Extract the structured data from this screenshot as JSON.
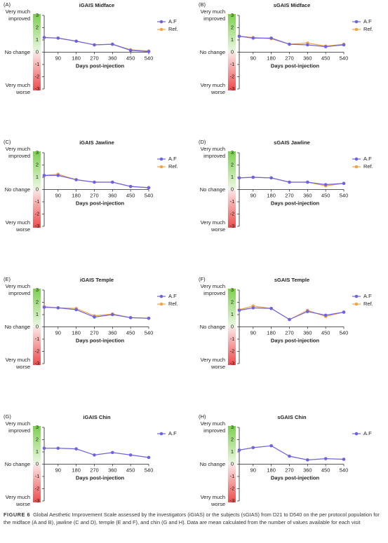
{
  "chart_data": [
    {
      "type": "line",
      "panel": "(A)",
      "title": "iGAIS Midface",
      "xlabel": "Days post-injection",
      "x": [
        21,
        90,
        180,
        270,
        360,
        450,
        540
      ],
      "xlim": [
        21,
        540
      ],
      "xticks": [
        90,
        180,
        270,
        360,
        450,
        540
      ],
      "ylim": [
        -3,
        3
      ],
      "yticks": [
        3,
        2,
        1,
        0,
        -1,
        -2,
        -3
      ],
      "y_annotations": [
        {
          "value": 3,
          "label": "Very much improved"
        },
        {
          "value": 0,
          "label": "No change"
        },
        {
          "value": -3,
          "label": "Very much worse"
        }
      ],
      "series": [
        {
          "name": "A.F",
          "color": "#6b63e6",
          "values": [
            1.2,
            1.15,
            0.9,
            0.6,
            0.65,
            0.15,
            0.05
          ]
        },
        {
          "name": "Ref.",
          "color": "#f4a447",
          "values": [
            1.2,
            1.15,
            0.9,
            0.6,
            0.65,
            0.2,
            0.1
          ]
        }
      ]
    },
    {
      "type": "line",
      "panel": "(B)",
      "title": "sGAIS Midface",
      "xlabel": "Days post-injection",
      "x": [
        21,
        90,
        180,
        270,
        360,
        450,
        540
      ],
      "xlim": [
        21,
        540
      ],
      "xticks": [
        90,
        180,
        270,
        360,
        450,
        540
      ],
      "ylim": [
        -3,
        3
      ],
      "yticks": [
        3,
        2,
        1,
        0,
        -1,
        -2,
        -3
      ],
      "y_annotations": [
        {
          "value": 3,
          "label": "Very much improved"
        },
        {
          "value": 0,
          "label": "No change"
        },
        {
          "value": -3,
          "label": "Very much worse"
        }
      ],
      "series": [
        {
          "name": "A.F",
          "color": "#6b63e6",
          "values": [
            1.3,
            1.15,
            1.15,
            0.65,
            0.6,
            0.45,
            0.6
          ]
        },
        {
          "name": "Ref.",
          "color": "#f4a447",
          "values": [
            1.3,
            1.2,
            1.1,
            0.65,
            0.75,
            0.5,
            0.65
          ]
        }
      ]
    },
    {
      "type": "line",
      "panel": "(C)",
      "title": "iGAIS Jawline",
      "xlabel": "Days post-injection",
      "x": [
        21,
        90,
        180,
        270,
        360,
        450,
        540
      ],
      "xlim": [
        21,
        540
      ],
      "xticks": [
        90,
        180,
        270,
        360,
        450,
        540
      ],
      "ylim": [
        -3,
        3
      ],
      "yticks": [
        3,
        2,
        1,
        0,
        -1,
        -2,
        -3
      ],
      "y_annotations": [
        {
          "value": 3,
          "label": "Very much improved"
        },
        {
          "value": 0,
          "label": "No change"
        },
        {
          "value": -3,
          "label": "Very much worse"
        }
      ],
      "series": [
        {
          "name": "A.F",
          "color": "#6b63e6",
          "values": [
            1.15,
            1.15,
            0.8,
            0.6,
            0.6,
            0.25,
            0.15
          ]
        },
        {
          "name": "Ref.",
          "color": "#f4a447",
          "values": [
            1.15,
            1.25,
            0.8,
            0.6,
            0.6,
            0.25,
            0.15
          ]
        }
      ]
    },
    {
      "type": "line",
      "panel": "(D)",
      "title": "sGAIS Jawline",
      "xlabel": "Days post-injection",
      "x": [
        21,
        90,
        180,
        270,
        360,
        450,
        540
      ],
      "xlim": [
        21,
        540
      ],
      "xticks": [
        90,
        180,
        270,
        360,
        450,
        540
      ],
      "ylim": [
        -3,
        3
      ],
      "yticks": [
        3,
        2,
        1,
        0,
        -1,
        -2,
        -3
      ],
      "y_annotations": [
        {
          "value": 3,
          "label": "Very much improved"
        },
        {
          "value": 0,
          "label": "No change"
        },
        {
          "value": -3,
          "label": "Very much worse"
        }
      ],
      "series": [
        {
          "name": "A.F",
          "color": "#6b63e6",
          "values": [
            0.95,
            1.0,
            0.95,
            0.6,
            0.6,
            0.4,
            0.5
          ]
        },
        {
          "name": "Ref.",
          "color": "#f4a447",
          "values": [
            0.95,
            1.0,
            0.95,
            0.6,
            0.6,
            0.3,
            0.5
          ]
        }
      ]
    },
    {
      "type": "line",
      "panel": "(E)",
      "title": "iGAIS Temple",
      "xlabel": "Days post-injection",
      "x": [
        21,
        90,
        180,
        270,
        360,
        450,
        540
      ],
      "xlim": [
        21,
        540
      ],
      "xticks": [
        90,
        180,
        270,
        360,
        450,
        540
      ],
      "ylim": [
        -3,
        3
      ],
      "yticks": [
        3,
        2,
        1,
        0,
        -1,
        -2,
        -3
      ],
      "y_annotations": [
        {
          "value": 3,
          "label": "Very much improved"
        },
        {
          "value": 0,
          "label": "No change"
        },
        {
          "value": -3,
          "label": "Very much worse"
        }
      ],
      "series": [
        {
          "name": "A.F",
          "color": "#6b63e6",
          "values": [
            1.6,
            1.55,
            1.4,
            0.8,
            1.0,
            0.75,
            0.7
          ]
        },
        {
          "name": "Ref.",
          "color": "#f4a447",
          "values": [
            1.65,
            1.55,
            1.5,
            0.9,
            1.05,
            0.75,
            0.7
          ]
        }
      ]
    },
    {
      "type": "line",
      "panel": "(F)",
      "title": "sGAIS Temple",
      "xlabel": "Days post-injection",
      "x": [
        21,
        90,
        180,
        270,
        360,
        450,
        540
      ],
      "xlim": [
        21,
        540
      ],
      "xticks": [
        90,
        180,
        270,
        360,
        450,
        540
      ],
      "ylim": [
        -3,
        3
      ],
      "yticks": [
        3,
        2,
        1,
        0,
        -1,
        -2,
        -3
      ],
      "y_annotations": [
        {
          "value": 3,
          "label": "Very much improved"
        },
        {
          "value": 0,
          "label": "No change"
        },
        {
          "value": -3,
          "label": "Very much worse"
        }
      ],
      "series": [
        {
          "name": "A.F",
          "color": "#6b63e6",
          "values": [
            1.35,
            1.55,
            1.5,
            0.6,
            1.25,
            0.95,
            1.2
          ]
        },
        {
          "name": "Ref.",
          "color": "#f4a447",
          "values": [
            1.4,
            1.7,
            1.5,
            0.6,
            1.35,
            0.85,
            1.2
          ]
        }
      ]
    },
    {
      "type": "line",
      "panel": "(G)",
      "title": "iGAIS Chin",
      "xlabel": "Days post-injection",
      "x": [
        21,
        90,
        180,
        270,
        360,
        450,
        540
      ],
      "xlim": [
        21,
        540
      ],
      "xticks": [
        90,
        180,
        270,
        360,
        450,
        540
      ],
      "ylim": [
        -3,
        3
      ],
      "yticks": [
        3,
        2,
        1,
        0,
        -1,
        -2,
        -3
      ],
      "y_annotations": [
        {
          "value": 3,
          "label": "Very much improved"
        },
        {
          "value": 0,
          "label": "No change"
        },
        {
          "value": -3,
          "label": "Very much worse"
        }
      ],
      "series": [
        {
          "name": "A.F",
          "color": "#6b63e6",
          "values": [
            1.3,
            1.3,
            1.25,
            0.75,
            0.95,
            0.75,
            0.55
          ]
        }
      ]
    },
    {
      "type": "line",
      "panel": "(H)",
      "title": "sGAIS Chin",
      "xlabel": "Days post-injection",
      "x": [
        21,
        90,
        180,
        270,
        360,
        450,
        540
      ],
      "xlim": [
        21,
        540
      ],
      "xticks": [
        90,
        180,
        270,
        360,
        450,
        540
      ],
      "ylim": [
        -3,
        3
      ],
      "yticks": [
        3,
        2,
        1,
        0,
        -1,
        -2,
        -3
      ],
      "y_annotations": [
        {
          "value": 3,
          "label": "Very much improved"
        },
        {
          "value": 0,
          "label": "No change"
        },
        {
          "value": -3,
          "label": "Very much worse"
        }
      ],
      "series": [
        {
          "name": "A.F",
          "color": "#6b63e6",
          "values": [
            1.15,
            1.35,
            1.5,
            0.65,
            0.35,
            0.45,
            0.4
          ]
        }
      ]
    }
  ],
  "figure_label": "FIGURE 6",
  "caption": "Global Aesthetic Improvement Scale assessed by the investigators (iGIAS) or the subjects (sGIAS) from D21 to D540 on the per protocol population for the midface (A and B), jawline (C and D), temple (E and F), and chin (G and H). Data are mean calculated from the number of values available for each visit"
}
